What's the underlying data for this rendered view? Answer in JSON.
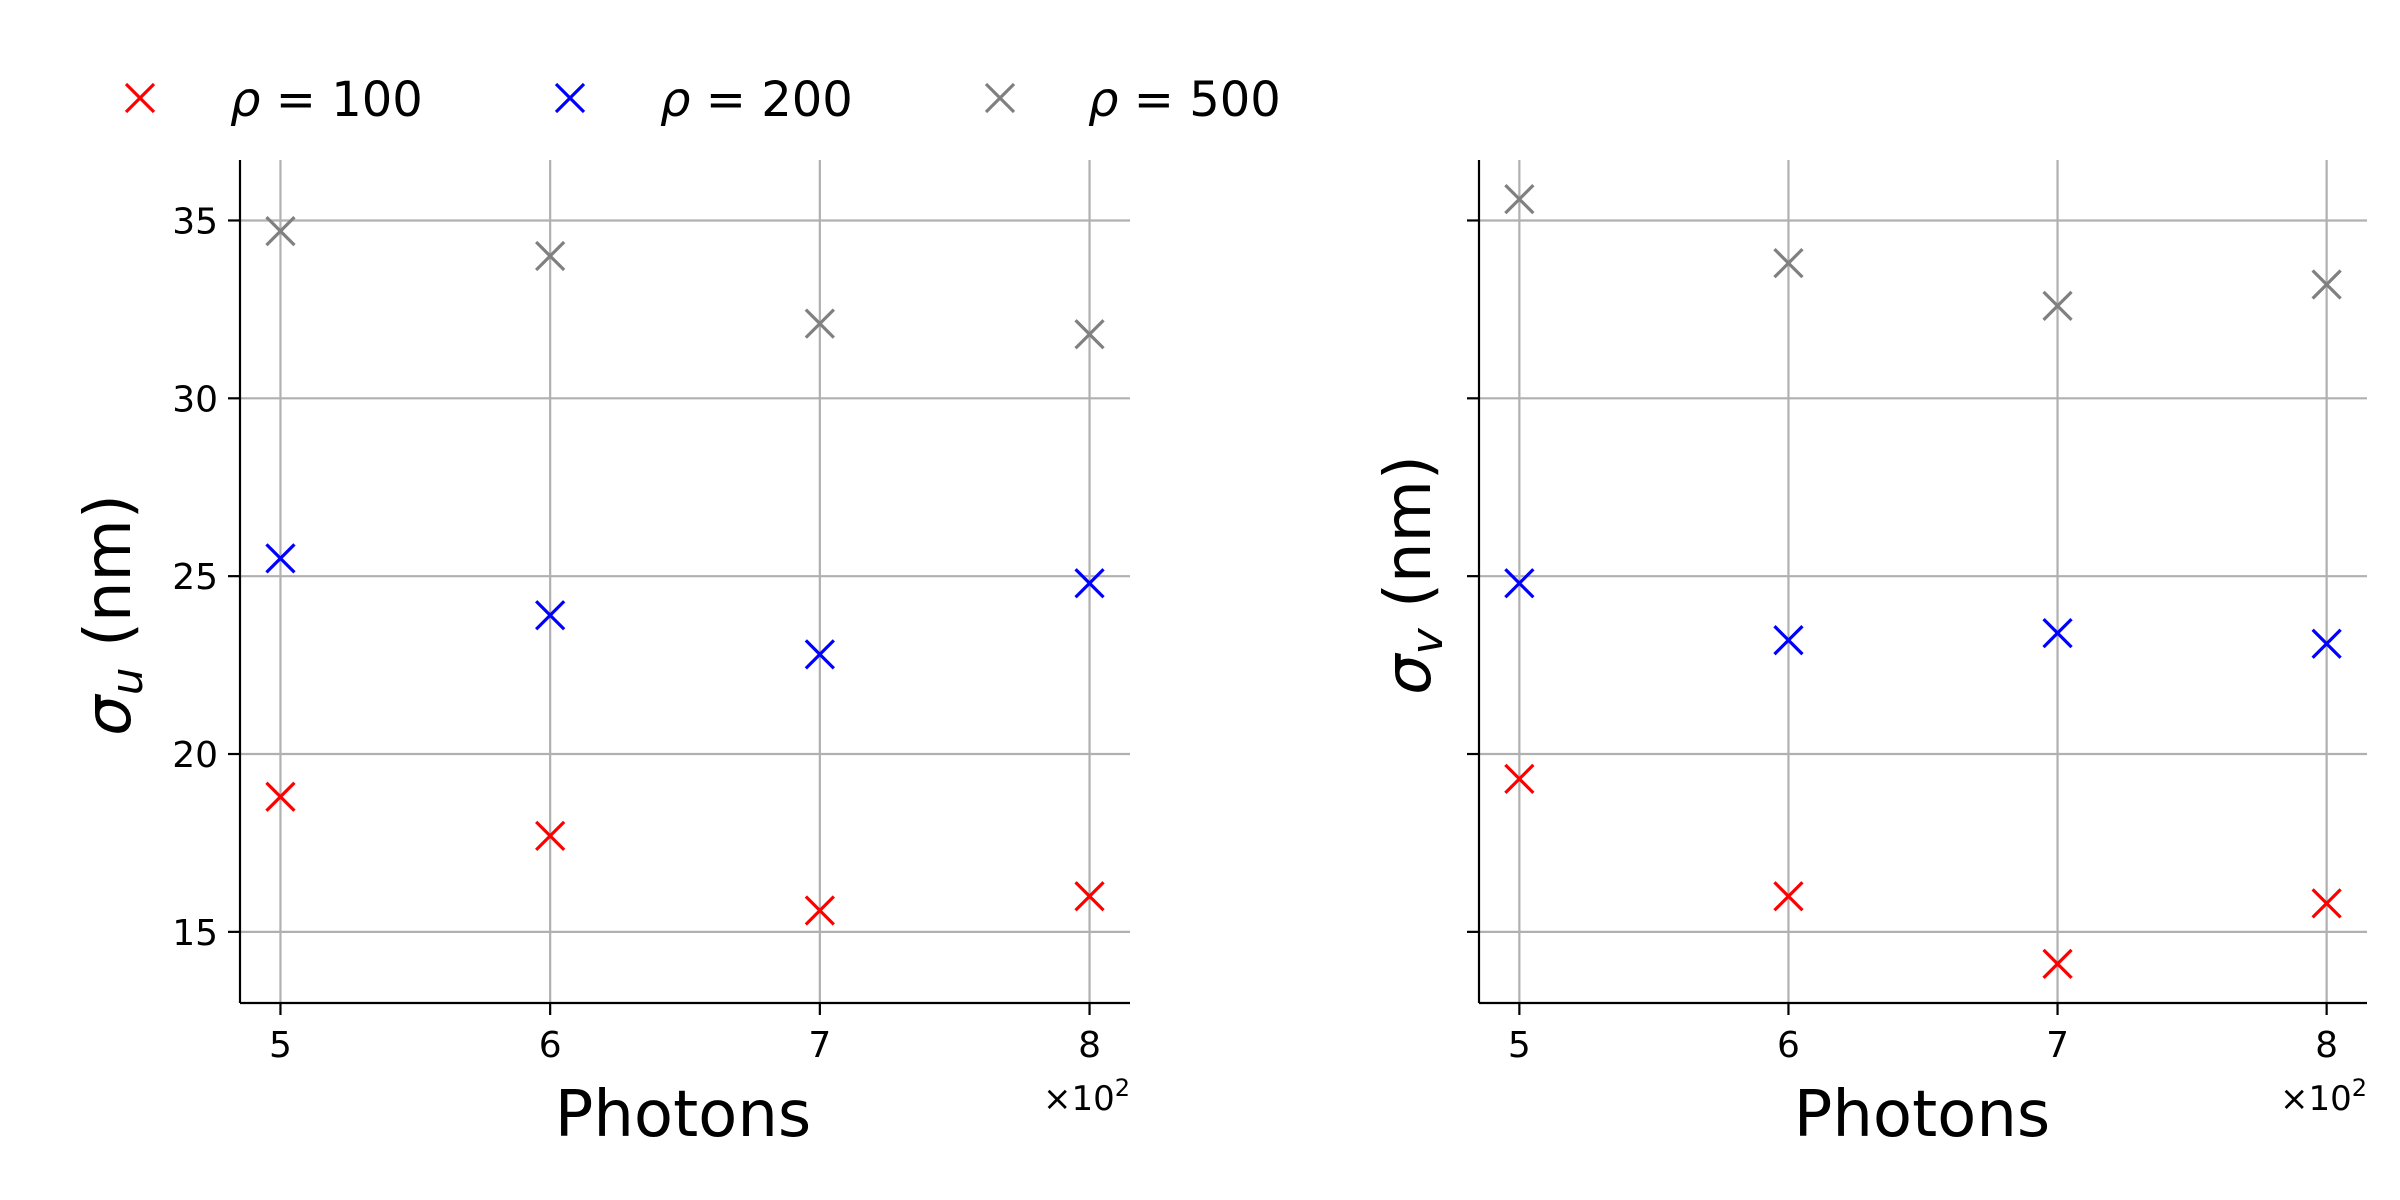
{
  "legend": {
    "placement": "top-left",
    "entries": [
      {
        "label_var": "ρ",
        "label_eq": " = ",
        "label_val": "100",
        "color": "#ff0000"
      },
      {
        "label_var": "ρ",
        "label_eq": " = ",
        "label_val": "200",
        "color": "#0000ff"
      },
      {
        "label_var": "ρ",
        "label_eq": " = ",
        "label_val": "500",
        "color": "#808080"
      }
    ]
  },
  "colors": {
    "grid": "#b0b0b0",
    "axis": "#000000"
  },
  "chart_data": [
    {
      "type": "scatter",
      "marker": "x",
      "xlabel": "Photons",
      "x_offset_text": {
        "base": "×10",
        "exp": "2"
      },
      "ylabel": {
        "var": "σ",
        "sub": "u",
        "unit": " (nm)"
      },
      "x": [
        5,
        6,
        7,
        8
      ],
      "xticks": [
        "5",
        "6",
        "7",
        "8"
      ],
      "xlim": [
        4.85,
        8.15
      ],
      "ylim": [
        13,
        36.7
      ],
      "yticks": [
        "15",
        "20",
        "25",
        "30",
        "35"
      ],
      "grid": true,
      "series": [
        {
          "name": "ρ = 100",
          "color": "#ff0000",
          "values": [
            18.8,
            17.7,
            15.6,
            16.0
          ]
        },
        {
          "name": "ρ = 200",
          "color": "#0000ff",
          "values": [
            25.5,
            23.9,
            22.8,
            24.8
          ]
        },
        {
          "name": "ρ = 500",
          "color": "#808080",
          "values": [
            34.7,
            34.0,
            32.1,
            31.8
          ]
        }
      ]
    },
    {
      "type": "scatter",
      "marker": "x",
      "xlabel": "Photons",
      "x_offset_text": {
        "base": "×10",
        "exp": "2"
      },
      "ylabel": {
        "var": "σ",
        "sub": "v",
        "unit": " (nm)"
      },
      "x": [
        5,
        6,
        7,
        8
      ],
      "xticks": [
        "5",
        "6",
        "7",
        "8"
      ],
      "xlim": [
        4.85,
        8.15
      ],
      "ylim": [
        13,
        36.7
      ],
      "yticks": [],
      "grid": true,
      "series": [
        {
          "name": "ρ = 100",
          "color": "#ff0000",
          "values": [
            19.3,
            16.0,
            14.1,
            15.8
          ]
        },
        {
          "name": "ρ = 200",
          "color": "#0000ff",
          "values": [
            24.8,
            23.2,
            23.4,
            23.1
          ]
        },
        {
          "name": "ρ = 500",
          "color": "#808080",
          "values": [
            35.6,
            33.8,
            32.6,
            33.2
          ]
        }
      ]
    }
  ]
}
